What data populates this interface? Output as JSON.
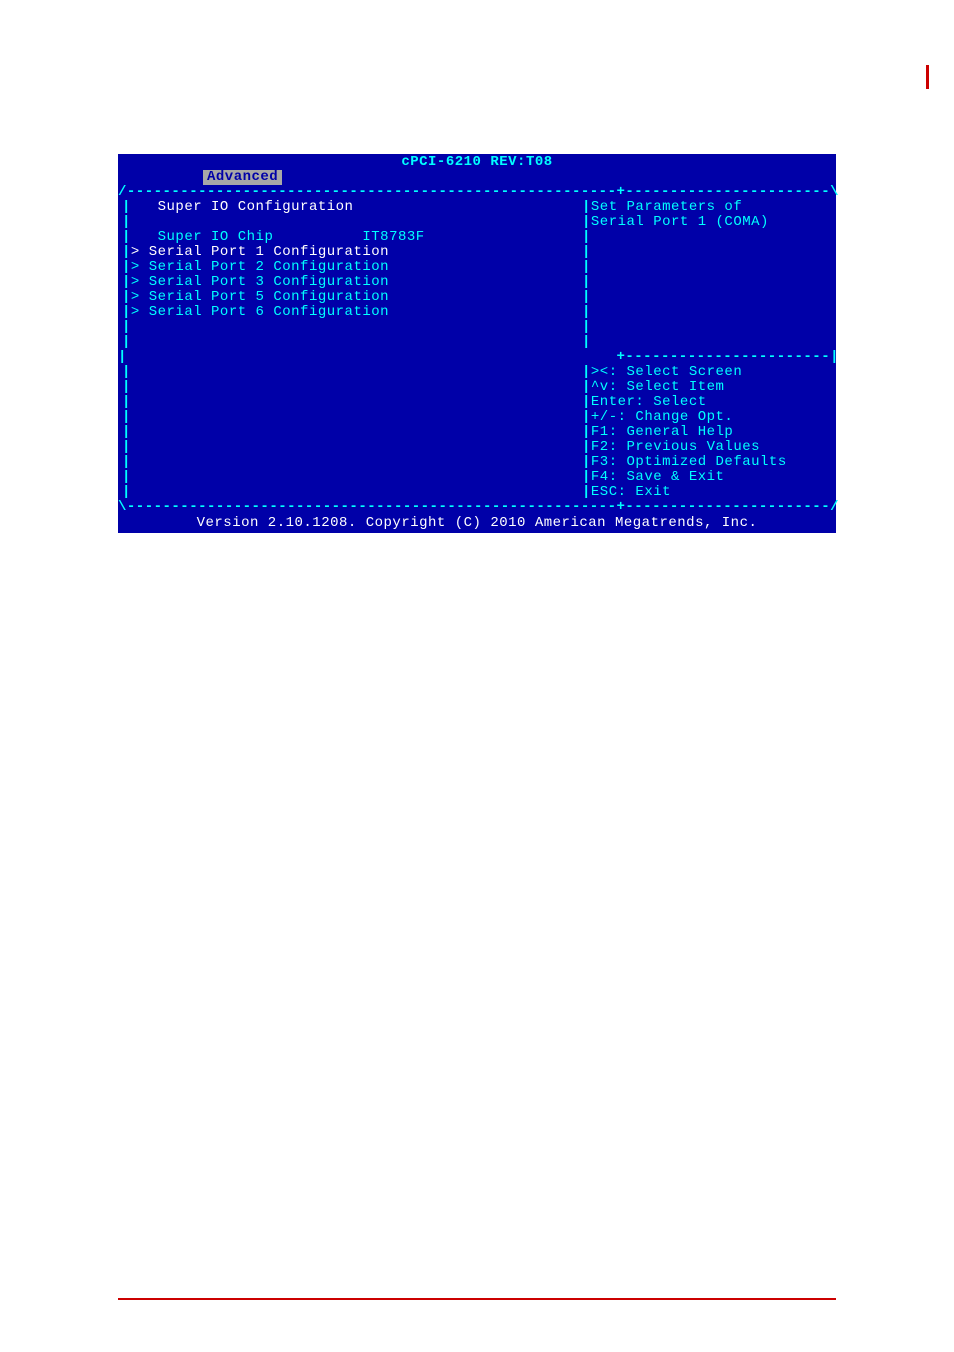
{
  "colors": {
    "bios_bg": "#0000a8",
    "cyan": "#00ffff",
    "white": "#ffffff",
    "gray": "#a8a8a8",
    "red": "#cc0000"
  },
  "title": "cPCI-6210 REV:T08",
  "tab": "Advanced",
  "section_heading": "Super IO Configuration",
  "chip_label": "Super IO Chip",
  "chip_value": "IT8783F",
  "menu_items": [
    {
      "label": "Serial Port 1 Configuration",
      "selected": true
    },
    {
      "label": "Serial Port 2 Configuration",
      "selected": false
    },
    {
      "label": "Serial Port 3 Configuration",
      "selected": false
    },
    {
      "label": "Serial Port 5 Configuration",
      "selected": false
    },
    {
      "label": "Serial Port 6 Configuration",
      "selected": false
    }
  ],
  "help_description": [
    "Set Parameters of",
    "Serial Port 1 (COMA)"
  ],
  "key_help": [
    "><: Select Screen",
    "^v: Select Item",
    "Enter: Select",
    "+/-: Change Opt.",
    "F1: General Help",
    "F2: Previous Values",
    "F3: Optimized Defaults",
    "F4: Save & Exit",
    "ESC: Exit"
  ],
  "footer": "Version 2.10.1208. Copyright (C) 2010 American Megatrends, Inc.",
  "border": {
    "top": "/-------------------------------------------------------+-----------------------\\",
    "mid": "|                                                       +-----------------------|",
    "bottom": "\\-------------------------------------------------------+-----------------------/"
  }
}
